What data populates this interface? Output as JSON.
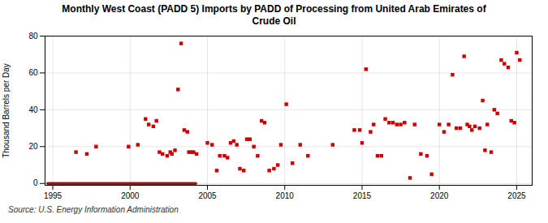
{
  "chart_data": {
    "type": "scatter",
    "title": "Monthly West Coast (PADD 5) Imports by PADD of Processing from United Arab Emirates of\nCrude Oil",
    "ylabel": "Thousand Barrels per Day",
    "caption": "Source: U.S. Energy Information Administration",
    "xlim": [
      1994.5,
      2026.0
    ],
    "ylim": [
      -1,
      80
    ],
    "xticks": [
      1995,
      2000,
      2005,
      2010,
      2015,
      2020,
      2025
    ],
    "yticks": [
      0,
      20,
      40,
      60,
      80
    ],
    "grid": true,
    "series": [
      {
        "type": "line",
        "color": "#8b1a1a",
        "line_style": "solid",
        "x": [
          1994.67,
          2004.25
        ],
        "values": [
          0,
          0
        ]
      },
      {
        "type": "scatter",
        "color": "#cc0000",
        "marker": "square",
        "x": [
          1996.5,
          1997.2,
          1997.8,
          1999.9,
          2000.5,
          2001.0,
          2001.2,
          2001.5,
          2001.7,
          2001.9,
          2002.1,
          2002.4,
          2002.6,
          2002.7,
          2002.9,
          2003.1,
          2003.3,
          2003.5,
          2003.7,
          2003.8,
          2003.95,
          2004.1,
          2004.3,
          2005.0,
          2005.3,
          2005.6,
          2005.8,
          2006.1,
          2006.3,
          2006.5,
          2006.7,
          2006.9,
          2007.1,
          2007.35,
          2007.55,
          2007.75,
          2008.0,
          2008.25,
          2008.5,
          2008.7,
          2009.0,
          2009.3,
          2009.55,
          2009.75,
          2010.1,
          2010.5,
          2011.0,
          2011.5,
          2013.1,
          2014.5,
          2014.85,
          2015.0,
          2015.25,
          2015.55,
          2015.75,
          2016.0,
          2016.25,
          2016.5,
          2016.75,
          2017.0,
          2017.25,
          2017.5,
          2017.75,
          2018.1,
          2018.4,
          2018.8,
          2019.2,
          2019.5,
          2020.0,
          2020.3,
          2020.6,
          2020.85,
          2021.1,
          2021.35,
          2021.6,
          2021.8,
          2021.95,
          2022.1,
          2022.3,
          2022.6,
          2022.8,
          2022.95,
          2023.1,
          2023.35,
          2023.55,
          2023.75,
          2024.0,
          2024.2,
          2024.45,
          2024.65,
          2024.85,
          2025.0,
          2025.2
        ],
        "values": [
          17,
          16,
          20,
          20,
          21,
          35,
          32,
          31,
          34,
          17,
          16,
          15,
          17,
          16,
          18,
          51,
          76,
          29,
          28,
          17,
          17,
          17,
          16,
          22,
          21,
          7,
          15,
          15,
          14,
          22,
          23,
          21,
          8,
          7,
          24,
          24,
          20,
          15,
          34,
          33,
          7,
          8,
          10,
          21,
          43,
          11,
          21,
          15,
          21,
          29,
          29,
          22,
          62,
          28,
          32,
          15,
          15,
          35,
          33,
          33,
          32,
          32,
          33,
          3,
          32,
          16,
          15,
          5,
          32,
          28,
          32,
          59,
          30,
          30,
          69,
          32,
          31,
          29,
          31,
          30,
          45,
          18,
          32,
          17,
          40,
          38,
          67,
          65,
          63,
          34,
          33,
          71,
          67
        ]
      }
    ]
  }
}
